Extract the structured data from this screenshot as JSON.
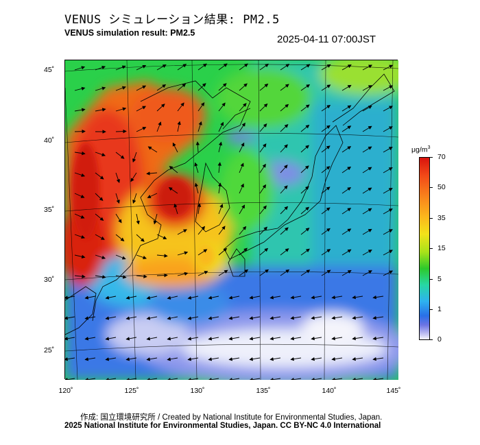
{
  "header": {
    "title_jp": "VENUS シミュレーション結果: PM2.5",
    "title_en": "VENUS simulation result: PM2.5",
    "timestamp": "2025-04-11 07:00JST"
  },
  "map": {
    "lon_labels": [
      "120˚",
      "125˚",
      "130˚",
      "135˚",
      "140˚",
      "145˚"
    ],
    "lat_labels": [
      "45˚",
      "40˚",
      "35˚",
      "30˚",
      "25˚"
    ]
  },
  "colorbar": {
    "unit": "μg/m",
    "unit_sup": "3",
    "labels": [
      "70",
      "50",
      "35",
      "15",
      "5",
      "1",
      "0"
    ]
  },
  "footer": {
    "credit_line": "作成: 国立環境研究所 / Created by National Institute for Environmental Studies, Japan.",
    "copyright_line": "2025 National Institute for Environmental Studies, Japan. CC BY-NC 4.0 International"
  }
}
